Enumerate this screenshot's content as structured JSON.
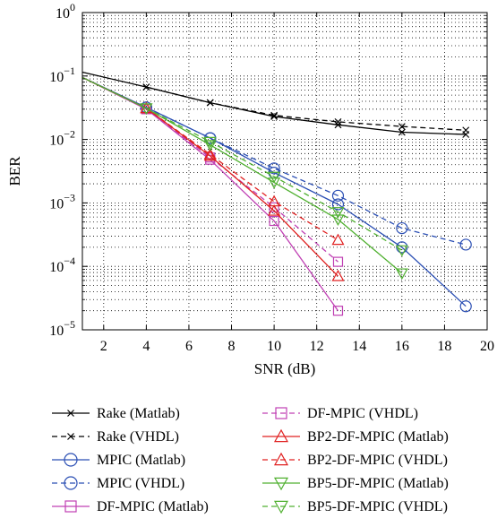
{
  "chart_data": {
    "type": "line",
    "title": "",
    "xlabel": "SNR (dB)",
    "ylabel": "BER",
    "xlim": [
      1,
      20
    ],
    "ylim": [
      1e-05,
      1
    ],
    "yscale": "log",
    "grid": true,
    "legend_position": "below",
    "x_ticks": [
      2,
      4,
      6,
      8,
      10,
      12,
      14,
      16,
      18,
      20
    ],
    "x_tick_labels": [
      "2",
      "4",
      "6",
      "8",
      "10",
      "12",
      "14",
      "16",
      "18",
      "20"
    ],
    "y_ticks": [
      1e-05,
      0.0001,
      0.001,
      0.01,
      0.1,
      1
    ],
    "y_tick_labels": [
      {
        "base": "10",
        "exp": "−5"
      },
      {
        "base": "10",
        "exp": "−4"
      },
      {
        "base": "10",
        "exp": "−3"
      },
      {
        "base": "10",
        "exp": "−2"
      },
      {
        "base": "10",
        "exp": "−1"
      },
      {
        "base": "10",
        "exp": "0"
      }
    ],
    "series": [
      {
        "name": "Rake (Matlab)",
        "color": "#000000",
        "dash": "solid",
        "marker": "x",
        "x": [
          1,
          4,
          7,
          10,
          13,
          16,
          19
        ],
        "y": [
          0.115,
          0.067,
          0.038,
          0.023,
          0.017,
          0.013,
          0.012
        ]
      },
      {
        "name": "Rake (VHDL)",
        "color": "#000000",
        "dash": "dashed",
        "marker": "x",
        "x": [
          4,
          7,
          10,
          13,
          16,
          19
        ],
        "y": [
          0.067,
          0.038,
          0.024,
          0.019,
          0.016,
          0.014
        ]
      },
      {
        "name": "MPIC (Matlab)",
        "color": "#2b4fb4",
        "dash": "solid",
        "marker": "circle",
        "x": [
          1,
          4,
          7,
          10,
          13,
          16,
          19
        ],
        "y": [
          0.095,
          0.032,
          0.0105,
          0.003,
          0.00095,
          0.0002,
          2.35e-05
        ]
      },
      {
        "name": "MPIC (VHDL)",
        "color": "#2b4fb4",
        "dash": "dashed",
        "marker": "circle",
        "x": [
          4,
          7,
          10,
          13,
          16,
          19
        ],
        "y": [
          0.032,
          0.0105,
          0.0035,
          0.0013,
          0.0004,
          0.00022
        ]
      },
      {
        "name": "DF-MPIC (Matlab)",
        "color": "#c040b4",
        "dash": "solid",
        "marker": "square",
        "x": [
          1,
          4,
          7,
          10,
          13
        ],
        "y": [
          0.095,
          0.03,
          0.0048,
          0.00052,
          2e-05
        ]
      },
      {
        "name": "DF-MPIC (VHDL)",
        "color": "#c040b4",
        "dash": "dashed",
        "marker": "square",
        "x": [
          4,
          7,
          10,
          13
        ],
        "y": [
          0.03,
          0.0052,
          0.00085,
          0.000118
        ]
      },
      {
        "name": "BP2-DF-MPIC (Matlab)",
        "color": "#e02020",
        "dash": "solid",
        "marker": "triangle-up",
        "x": [
          1,
          4,
          7,
          10,
          13
        ],
        "y": [
          0.095,
          0.031,
          0.0055,
          0.00075,
          7e-05
        ]
      },
      {
        "name": "BP2-DF-MPIC (VHDL)",
        "color": "#e02020",
        "dash": "dashed",
        "marker": "triangle-up",
        "x": [
          4,
          7,
          10,
          13
        ],
        "y": [
          0.031,
          0.0058,
          0.00105,
          0.00026
        ]
      },
      {
        "name": "BP5-DF-MPIC (Matlab)",
        "color": "#50b030",
        "dash": "solid",
        "marker": "triangle-down",
        "x": [
          1,
          4,
          7,
          10,
          13,
          16
        ],
        "y": [
          0.095,
          0.031,
          0.0082,
          0.0021,
          0.00055,
          7.8e-05
        ]
      },
      {
        "name": "BP5-DF-MPIC (VHDL)",
        "color": "#50b030",
        "dash": "dashed",
        "marker": "triangle-down",
        "x": [
          4,
          7,
          10,
          13,
          16
        ],
        "y": [
          0.031,
          0.0092,
          0.0026,
          0.00072,
          0.00018
        ]
      }
    ]
  }
}
